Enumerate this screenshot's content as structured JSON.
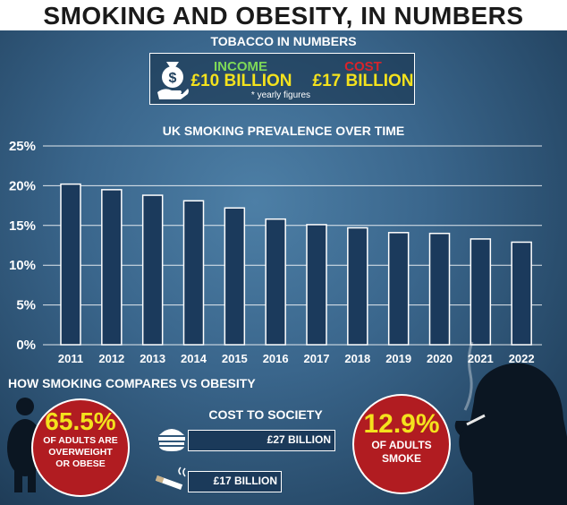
{
  "header": {
    "title": "SMOKING AND OBESITY, IN NUMBERS"
  },
  "tobacco": {
    "heading": "TOBACCO IN NUMBERS",
    "income_label": "INCOME",
    "income_value": "£10 BILLION",
    "cost_label": "COST",
    "cost_value": "£17 BILLION",
    "note": "* yearly figures"
  },
  "chart_data": {
    "type": "bar",
    "title": "UK SMOKING PREVALENCE OVER TIME",
    "categories": [
      "2011",
      "2012",
      "2013",
      "2014",
      "2015",
      "2016",
      "2017",
      "2018",
      "2019",
      "2020",
      "2021",
      "2022"
    ],
    "values": [
      20.2,
      19.5,
      18.8,
      18.1,
      17.2,
      15.8,
      15.1,
      14.7,
      14.1,
      14.0,
      13.3,
      12.9
    ],
    "xlabel": "",
    "ylabel": "",
    "ylim": [
      0,
      25
    ],
    "yticks": [
      0,
      5,
      10,
      15,
      20,
      25
    ],
    "ytick_labels": [
      "0%",
      "5%",
      "10%",
      "15%",
      "20%",
      "25%"
    ],
    "grid": true,
    "colors": {
      "bar": "#1b3a5c",
      "bar_border": "#ffffff",
      "grid": "#ffffff"
    }
  },
  "comparison": {
    "heading": "HOW SMOKING COMPARES VS OBESITY",
    "obesity": {
      "value": "65.5%",
      "text": "OF ADULTS ARE OVERWEIGHT OR OBESE"
    },
    "cost_heading": "COST TO SOCIETY",
    "obesity_cost": "£27 BILLION",
    "smoking_cost": "£17 BILLION",
    "smoking": {
      "value": "12.9%",
      "text": "OF ADULTS SMOKE"
    }
  },
  "icons": [
    "money-bag-hand-icon",
    "obese-person-icon",
    "burger-icon",
    "cigarette-icon",
    "smoker-silhouette-icon"
  ],
  "colors": {
    "accent_yellow": "#f4e21d",
    "income_green": "#7ed957",
    "cost_red": "#d8242b",
    "circle_red": "#b11c21"
  }
}
